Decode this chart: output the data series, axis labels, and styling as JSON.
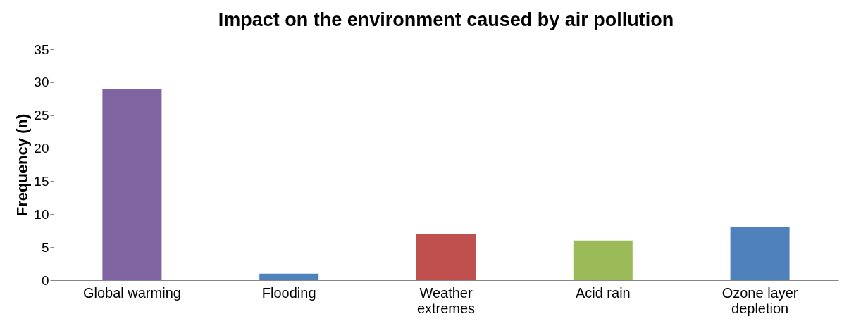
{
  "chart_data": {
    "type": "bar",
    "title": "Impact on the environment caused by air pollution",
    "ylabel": "Frequency (n)",
    "categories": [
      "Global warming",
      "Flooding",
      "Weather extremes",
      "Acid rain",
      "Ozone layer depletion"
    ],
    "values": [
      29,
      1,
      7,
      6,
      8
    ],
    "colors": [
      "#8064a2",
      "#4f81bd",
      "#c0504d",
      "#9bbb59",
      "#4f81bd"
    ],
    "ylim": [
      0,
      35
    ],
    "yticks": [
      0,
      5,
      10,
      15,
      20,
      25,
      30,
      35
    ],
    "grid": false
  }
}
